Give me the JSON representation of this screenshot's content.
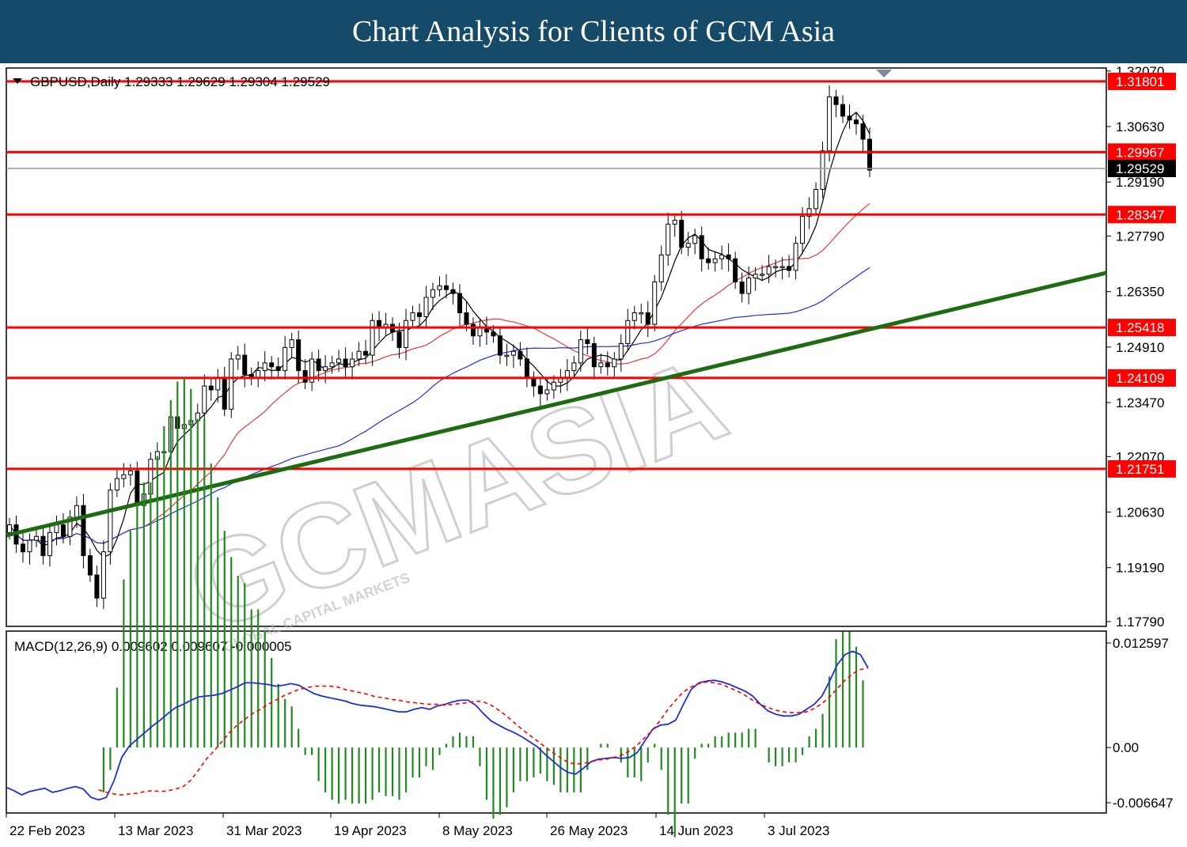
{
  "header": {
    "title": "Chart Analysis for Clients of GCM Asia"
  },
  "chart_info": {
    "symbol_line": "GBPUSD,Daily  1.29333 1.29629 1.29304 1.29529"
  },
  "macd_info": {
    "label": "MACD(12,26,9) 0.009602 0.009607 -0.000005"
  },
  "watermark": {
    "main": "GCMASIA",
    "sub": "GLOBAL CAPITAL MARKETS"
  },
  "colors": {
    "header_bg": "#154a68",
    "resistance": "#ff0000",
    "trendline": "#1e6b12",
    "ma_fast": "#000000",
    "ma_mid": "#e8383c",
    "ma_slow": "#1f2fd6",
    "macd": "#1f2fd6",
    "signal": "#ff0000",
    "histogram": "#1f8b1f",
    "current_price_line": "#8a9aa8"
  },
  "chart_data": {
    "type": "candlestick",
    "symbol": "GBPUSD",
    "timeframe": "Daily",
    "x_tick_labels": [
      "22 Feb 2023",
      "13 Mar 2023",
      "31 Mar 2023",
      "19 Apr 2023",
      "8 May 2023",
      "26 May 2023",
      "14 Jun 2023",
      "3 Jul 2023"
    ],
    "y_tick_labels": [
      "1.32070",
      "1.30630",
      "1.29190",
      "1.27790",
      "1.26350",
      "1.24910",
      "1.23470",
      "1.22070",
      "1.20630",
      "1.19190",
      "1.17790"
    ],
    "ylim": [
      1.1735,
      1.3205
    ],
    "current_price": "1.29529",
    "horizontal_levels": [
      "1.31801",
      "1.29967",
      "1.28347",
      "1.25418",
      "1.24109",
      "1.21751"
    ],
    "close_series": [
      1.203,
      1.198,
      1.196,
      1.199,
      1.2,
      1.195,
      1.201,
      1.203,
      1.2,
      1.205,
      1.208,
      1.195,
      1.19,
      1.184,
      1.196,
      1.212,
      1.215,
      1.216,
      1.217,
      1.208,
      1.211,
      1.22,
      1.222,
      1.222,
      1.231,
      1.228,
      1.229,
      1.23,
      1.232,
      1.239,
      1.238,
      1.241,
      1.233,
      1.246,
      1.247,
      1.242,
      1.241,
      1.243,
      1.245,
      1.244,
      1.243,
      1.249,
      1.251,
      1.243,
      1.24,
      1.246,
      1.243,
      1.244,
      1.245,
      1.246,
      1.244,
      1.246,
      1.248,
      1.247,
      1.256,
      1.254,
      1.255,
      1.253,
      1.249,
      1.256,
      1.258,
      1.257,
      1.262,
      1.264,
      1.265,
      1.264,
      1.263,
      1.258,
      1.255,
      1.252,
      1.254,
      1.253,
      1.252,
      1.247,
      1.247,
      1.248,
      1.246,
      1.241,
      1.239,
      1.237,
      1.238,
      1.24,
      1.241,
      1.243,
      1.245,
      1.251,
      1.25,
      1.244,
      1.245,
      1.244,
      1.246,
      1.25,
      1.256,
      1.258,
      1.258,
      1.255,
      1.266,
      1.273,
      1.281,
      1.282,
      1.275,
      1.276,
      1.278,
      1.272,
      1.271,
      1.272,
      1.273,
      1.272,
      1.266,
      1.263,
      1.267,
      1.268,
      1.268,
      1.27,
      1.27,
      1.27,
      1.269,
      1.276,
      1.283,
      1.285,
      1.29,
      1.3,
      1.314,
      1.312,
      1.309,
      1.308,
      1.307,
      1.303,
      1.295
    ],
    "moving_averages": [
      {
        "name": "MA fast",
        "period_hint": "short",
        "color": "#000000"
      },
      {
        "name": "MA mid",
        "period_hint": "medium",
        "color": "#e8383c"
      },
      {
        "name": "MA slow",
        "period_hint": "long",
        "color": "#1f2fd6"
      }
    ],
    "trendline": {
      "start": [
        "22 Feb 2023",
        1.1985
      ],
      "end": [
        "3 Jul 2023+",
        1.2665
      ]
    },
    "macd": {
      "label": "MACD(12,26,9)",
      "values": {
        "main": 0.009602,
        "signal": 0.009607,
        "histogram": -5e-06
      },
      "y_tick_labels": [
        "0.012597",
        "0.00",
        "-0.006647"
      ],
      "ylim": [
        -0.006647,
        0.012597
      ],
      "macd_series": [
        -0.0048,
        -0.0052,
        -0.0057,
        -0.0053,
        -0.0051,
        -0.0049,
        -0.0054,
        -0.0052,
        -0.0049,
        -0.0047,
        -0.005,
        -0.006,
        -0.0063,
        -0.006,
        -0.004,
        -0.0012,
        0.0002,
        0.001,
        0.0018,
        0.0026,
        0.0033,
        0.0041,
        0.0048,
        0.0052,
        0.0057,
        0.0061,
        0.0062,
        0.0063,
        0.0065,
        0.0069,
        0.0073,
        0.0078,
        0.0078,
        0.0077,
        0.0076,
        0.0074,
        0.0075,
        0.0077,
        0.0075,
        0.007,
        0.0065,
        0.0062,
        0.006,
        0.0058,
        0.0056,
        0.0053,
        0.0051,
        0.005,
        0.0049,
        0.0047,
        0.0045,
        0.0043,
        0.0043,
        0.0046,
        0.0048,
        0.0046,
        0.005,
        0.0052,
        0.0055,
        0.0057,
        0.0057,
        0.0051,
        0.0041,
        0.0032,
        0.0027,
        0.0022,
        0.0018,
        0.0013,
        0.0007,
        0.0001,
        -0.0008,
        -0.0016,
        -0.0024,
        -0.003,
        -0.0032,
        -0.0025,
        -0.0017,
        -0.0014,
        -0.0013,
        -0.0012,
        -0.0013,
        -0.0012,
        -0.0006,
        0.0008,
        0.0022,
        0.0027,
        0.0028,
        0.0033,
        0.0052,
        0.007,
        0.0078,
        0.008,
        0.0081,
        0.0079,
        0.0076,
        0.0072,
        0.0068,
        0.0062,
        0.0052,
        0.0044,
        0.004,
        0.0038,
        0.0038,
        0.004,
        0.0046,
        0.0052,
        0.0062,
        0.008,
        0.01,
        0.0112,
        0.0116,
        0.0112,
        0.0096
      ],
      "signal_series": [
        -0.0051,
        -0.0054,
        -0.0056,
        -0.0057,
        -0.0056,
        -0.0055,
        -0.0053,
        -0.0052,
        -0.0053,
        -0.0052,
        -0.005,
        -0.0047,
        -0.0039,
        -0.0027,
        -0.0014,
        -0.0004,
        0.0007,
        0.0018,
        0.0027,
        0.0034,
        0.0041,
        0.0046,
        0.0052,
        0.0057,
        0.0062,
        0.0066,
        0.007,
        0.0072,
        0.0074,
        0.0074,
        0.0074,
        0.0073,
        0.007,
        0.0068,
        0.0066,
        0.0064,
        0.0061,
        0.006,
        0.0058,
        0.0057,
        0.0055,
        0.0054,
        0.0053,
        0.0052,
        0.0052,
        0.0051,
        0.0052,
        0.0053,
        0.0054,
        0.0056,
        0.0055,
        0.0051,
        0.0045,
        0.0038,
        0.003,
        0.0022,
        0.0015,
        0.0008,
        0.0001,
        -0.0006,
        -0.0012,
        -0.0018,
        -0.002,
        -0.0019,
        -0.0017,
        -0.0015,
        -0.0014,
        -0.0012,
        -0.0009,
        -0.0004,
        0.0003,
        0.0012,
        0.0021,
        0.0033,
        0.0046,
        0.0057,
        0.0067,
        0.0073,
        0.0077,
        0.0079,
        0.0078,
        0.0076,
        0.0072,
        0.0068,
        0.0063,
        0.0057,
        0.0052,
        0.0048,
        0.0045,
        0.0043,
        0.0042,
        0.0042,
        0.0043,
        0.0047,
        0.0053,
        0.0061,
        0.0071,
        0.0081,
        0.0089,
        0.0094,
        0.0096
      ]
    }
  }
}
